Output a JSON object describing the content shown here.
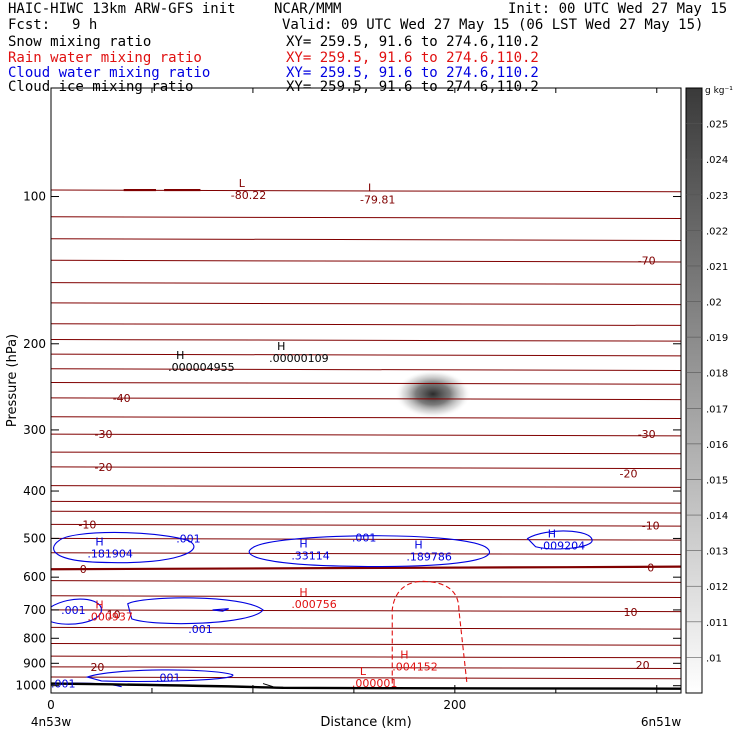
{
  "header": {
    "title_left": "HAIC-HIWC 13km ARW-GFS init",
    "title_org": "NCAR/MMM",
    "init": "Init: 00 UTC Wed 27 May 15",
    "fcst_label": "Fcst:",
    "fcst_value": "9 h",
    "valid": "Valid: 09 UTC Wed 27 May 15 (06 LST Wed 27 May 15)",
    "fields": [
      {
        "name": "Snow mixing ratio",
        "xy": "XY= 259.5, 91.6 to 274.6,110.2",
        "color": "#000000"
      },
      {
        "name": "Rain water mixing ratio",
        "xy": "XY= 259.5, 91.6 to 274.6,110.2",
        "color": "#e01010"
      },
      {
        "name": "Cloud water mixing ratio",
        "xy": "XY= 259.5, 91.6 to 274.6,110.2",
        "color": "#0000e0"
      },
      {
        "name": "Cloud ice mixing ratio",
        "xy": "XY= 259.5, 91.6 to 274.6,110.2",
        "color": "#000000"
      }
    ]
  },
  "chart_data": {
    "type": "contour",
    "xlabel": "Distance (km)",
    "ylabel": "Pressure (hPa)",
    "x_ticks": [
      0,
      200
    ],
    "y_ticks": [
      100,
      200,
      300,
      400,
      500,
      600,
      700,
      800,
      900,
      1000
    ],
    "xlim": [
      0,
      312
    ],
    "ylim": [
      1035,
      60
    ],
    "y_log": true,
    "left_endpoint": "4n53w",
    "right_endpoint": "6n51w",
    "colorbar_unit": "g kg⁻¹",
    "colorbar_ticks": [
      ".01",
      ".011",
      ".012",
      ".013",
      ".014",
      ".015",
      ".016",
      ".017",
      ".018",
      ".019",
      ".02",
      ".021",
      ".022",
      ".023",
      ".024",
      ".025"
    ],
    "temperature_contours": {
      "color": "#800000",
      "labels": [
        {
          "text": "-70",
          "x": 295,
          "p": 135
        },
        {
          "text": "-40",
          "x": 35,
          "p": 258
        },
        {
          "text": "-30",
          "x": 26,
          "p": 306
        },
        {
          "text": "-30",
          "x": 295,
          "p": 306
        },
        {
          "text": "-20",
          "x": 26,
          "p": 357
        },
        {
          "text": "-20",
          "x": 286,
          "p": 368
        },
        {
          "text": "-10",
          "x": 18,
          "p": 468
        },
        {
          "text": "-10",
          "x": 297,
          "p": 470
        },
        {
          "text": "0",
          "x": 16,
          "p": 578
        },
        {
          "text": "0",
          "x": 297,
          "p": 573
        },
        {
          "text": "10",
          "x": 31,
          "p": 716
        },
        {
          "text": "10",
          "x": 287,
          "p": 707
        },
        {
          "text": "20",
          "x": 23,
          "p": 915
        },
        {
          "text": "20",
          "x": 293,
          "p": 907
        }
      ]
    },
    "annotations": [
      {
        "kind": "L",
        "value": "-80.22",
        "x": 91,
        "p": 97,
        "color": "#800000"
      },
      {
        "kind": "L",
        "value": "-79.81",
        "x": 155,
        "p": 99,
        "color": "#800000"
      },
      {
        "kind": "H",
        "value": ".000004955",
        "x": 60,
        "p": 218,
        "color": "#000000"
      },
      {
        "kind": "H",
        "value": ".00000109",
        "x": 110,
        "p": 209,
        "color": "#000000"
      },
      {
        "kind": "H",
        "value": ".181904",
        "x": 20,
        "p": 524,
        "color": "#0000e0"
      },
      {
        "kind": "H",
        "value": ".33114",
        "x": 121,
        "p": 529,
        "color": "#0000e0"
      },
      {
        "kind": "H",
        "value": ".189786",
        "x": 178,
        "p": 532,
        "color": "#0000e0"
      },
      {
        "kind": "H",
        "value": ".009204",
        "x": 244,
        "p": 505,
        "color": "#0000e0"
      },
      {
        "kind": "H",
        "value": ".000756",
        "x": 121,
        "p": 665,
        "color": "#e01010"
      },
      {
        "kind": "H",
        "value": ".000937",
        "x": 20,
        "p": 705,
        "color": "#e01010"
      },
      {
        "kind": "H",
        "value": ".004152",
        "x": 171,
        "p": 893,
        "color": "#e01010"
      },
      {
        "kind": "L",
        "value": ".000001",
        "x": 151,
        "p": 965,
        "color": "#e01010"
      }
    ],
    "contour_labels": [
      {
        "text": ".001",
        "x": 62,
        "p": 500,
        "color": "#0000e0"
      },
      {
        "text": ".001",
        "x": 149,
        "p": 498,
        "color": "#0000e0"
      },
      {
        "text": ".001",
        "x": 5,
        "p": 700,
        "color": "#0000e0"
      },
      {
        "text": ".001",
        "x": 68,
        "p": 765,
        "color": "#0000e0"
      },
      {
        "text": ".001",
        "x": 52,
        "p": 962,
        "color": "#0000e0"
      },
      {
        "text": ".001",
        "x": 0,
        "p": 990,
        "color": "#0000e0"
      }
    ]
  }
}
